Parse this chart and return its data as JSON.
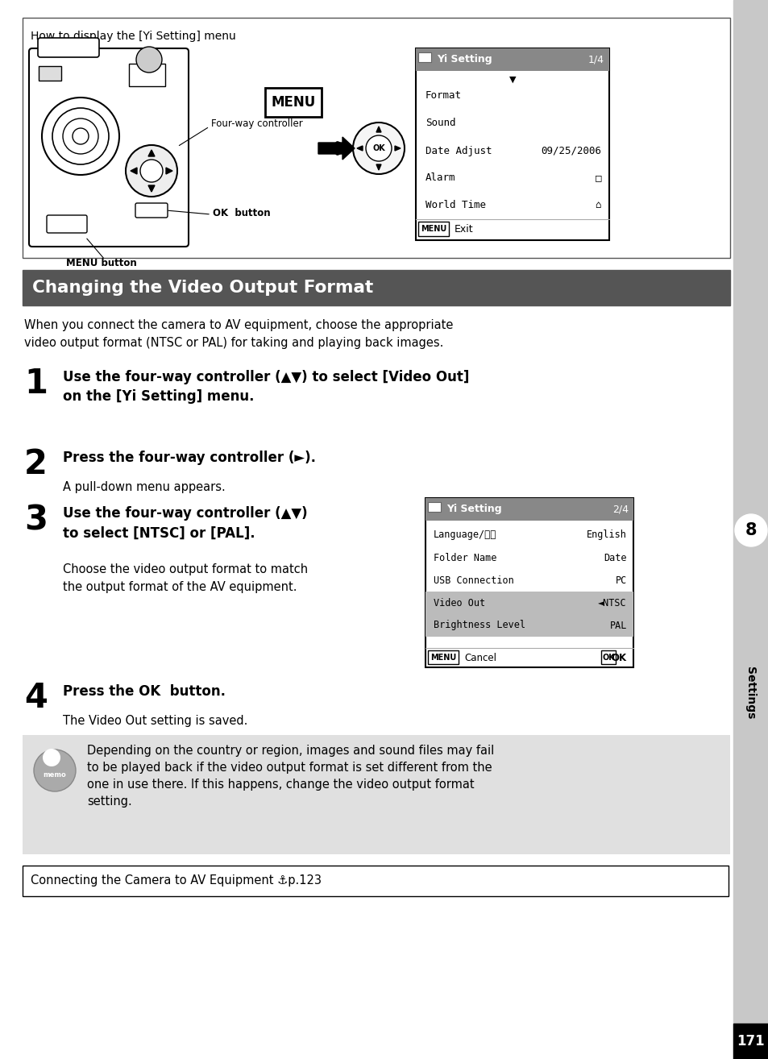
{
  "page_bg": "#ffffff",
  "sidebar_bg": "#c8c8c8",
  "page_number": "171",
  "page_num_bg": "#000000",
  "page_num_color": "#ffffff",
  "section_label": "8",
  "section_text": "Settings",
  "title_bg": "#555555",
  "title_text": "Changing the Video Output Format",
  "title_color": "#ffffff",
  "top_box_title": "How to display the [Yi Setting] menu",
  "intro_text": "When you connect the camera to AV equipment, choose the appropriate\nvideo output format (NTSC or PAL) for taking and playing back images.",
  "steps": [
    {
      "number": "1",
      "bold": "Use the four-way controller (▲▼) to select [Video Out]\non the [Yi Setting] menu."
    },
    {
      "number": "2",
      "bold": "Press the four-way controller (►).",
      "normal": "A pull-down menu appears."
    },
    {
      "number": "3",
      "bold": "Use the four-way controller (▲▼)\nto select [NTSC] or [PAL].",
      "normal": "Choose the video output format to match\nthe output format of the AV equipment."
    },
    {
      "number": "4",
      "bold": "Press the OK  button.",
      "normal": "The Video Out setting is saved."
    }
  ],
  "menu1_items": [
    [
      "Format",
      ""
    ],
    [
      "Sound",
      ""
    ],
    [
      "Date Adjust",
      "09/25/2006"
    ],
    [
      "Alarm",
      "□"
    ],
    [
      "World Time",
      "⌂"
    ]
  ],
  "menu2_items": [
    [
      "Language/言語",
      "English",
      false
    ],
    [
      "Folder Name",
      "Date",
      false
    ],
    [
      "USB Connection",
      "PC",
      false
    ],
    [
      "Video Out",
      "◄NTSC",
      true
    ],
    [
      "Brightness Level",
      "PAL",
      true
    ]
  ],
  "memo_bg": "#e0e0e0",
  "memo_text": "Depending on the country or region, images and sound files may fail\nto be played back if the video output format is set different from the\none in use there. If this happens, change the video output format\nsetting.",
  "ref_text": "Connecting the Camera to AV Equipment ⚓p.123"
}
